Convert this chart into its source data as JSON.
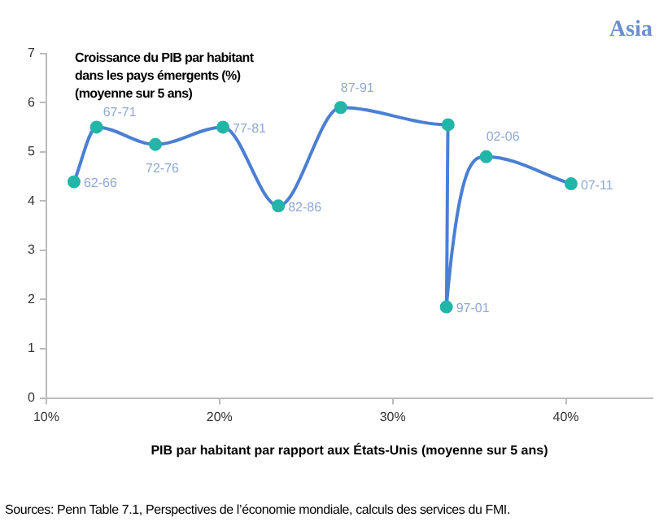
{
  "chart_data": {
    "type": "line",
    "title": "Asia",
    "ylabel": "Croissance du PIB par habitant\ndans les pays émergents (%)\n(moyenne sur 5 ans)",
    "xlabel": "PIB par habitant par rapport aux États-Unis (moyenne sur 5 ans)",
    "series": [
      {
        "color": "#4a7fd4",
        "x": [
          11.6,
          12.9,
          16.3,
          20.2,
          23.4,
          27.0,
          33.2,
          33.1,
          35.4,
          40.3
        ],
        "values": [
          4.39,
          5.5,
          5.15,
          5.5,
          3.9,
          5.9,
          5.55,
          1.85,
          4.9,
          4.35
        ]
      }
    ],
    "xlim": [
      10,
      45
    ],
    "xticks": [
      {
        "value": 10,
        "label": "10%"
      },
      {
        "value": 20,
        "label": "20%"
      },
      {
        "value": 30,
        "label": "30%"
      },
      {
        "value": 40,
        "label": "40%"
      }
    ],
    "ylim": [
      0,
      7
    ],
    "yticks": [
      0,
      1,
      2,
      3,
      4,
      5,
      6,
      7
    ],
    "grid": false,
    "legend": false,
    "marker": "circle",
    "line_style": "solid",
    "annotations": [
      {
        "text": "62-66",
        "x": 11.6,
        "y": 4.39
      },
      {
        "text": "67-71",
        "x": 12.9,
        "y": 5.5
      },
      {
        "text": "72-76",
        "x": 16.3,
        "y": 5.15
      },
      {
        "text": "77-81",
        "x": 20.2,
        "y": 5.5
      },
      {
        "text": "82-86",
        "x": 23.4,
        "y": 3.9
      },
      {
        "text": "87-91",
        "x": 27.0,
        "y": 5.9
      },
      {
        "text": "97-01",
        "x": 33.1,
        "y": 1.85
      },
      {
        "text": "02-06",
        "x": 35.4,
        "y": 4.9
      },
      {
        "text": "07-11",
        "x": 40.3,
        "y": 4.35
      },
      "Sources: Penn Table 7.1, Perspectives de l’économie mondiale, calculs des services du FMI."
    ]
  }
}
